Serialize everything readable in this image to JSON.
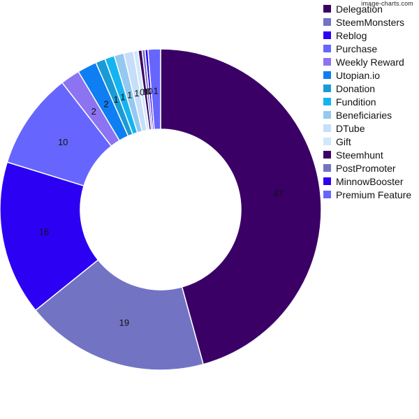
{
  "watermark": "image-charts.com",
  "chart_data": {
    "type": "pie",
    "donut": true,
    "legend": "right",
    "series": [
      {
        "name": "Delegation",
        "value": 47,
        "label": "47",
        "color": "#3a0066"
      },
      {
        "name": "SteemMonsters",
        "value": 19,
        "label": "19",
        "color": "#7373c4"
      },
      {
        "name": "Reblog",
        "value": 16,
        "label": "16",
        "color": "#2c00f2"
      },
      {
        "name": "Purchase",
        "value": 10,
        "label": "10",
        "color": "#6666ff"
      },
      {
        "name": "Weekly Reward",
        "value": 2,
        "label": "2",
        "color": "#8c73f2"
      },
      {
        "name": "Utopian.io",
        "value": 2,
        "label": "2",
        "color": "#0e7ef2"
      },
      {
        "name": "Donation",
        "value": 1,
        "label": "1",
        "color": "#1a9bd6"
      },
      {
        "name": "Fundition",
        "value": 1,
        "label": "1",
        "color": "#14b4f0"
      },
      {
        "name": "Beneficiaries",
        "value": 1,
        "label": "1",
        "color": "#94c8f0"
      },
      {
        "name": "DTube",
        "value": 1,
        "label": "1",
        "color": "#c6defa"
      },
      {
        "name": "Gift",
        "value": 0.5,
        "label": "0",
        "color": "#cfe8fc"
      },
      {
        "name": "Steemhunt",
        "value": 0.4,
        "label": "0",
        "color": "#3a0066"
      },
      {
        "name": "PostPromoter",
        "value": 0.3,
        "label": "0",
        "color": "#7373c4"
      },
      {
        "name": "MinnowBooster",
        "value": 0.3,
        "label": "0",
        "color": "#2c00f2"
      },
      {
        "name": "Premium Feature",
        "value": 1.3,
        "label": "1",
        "color": "#6666ff"
      }
    ]
  }
}
